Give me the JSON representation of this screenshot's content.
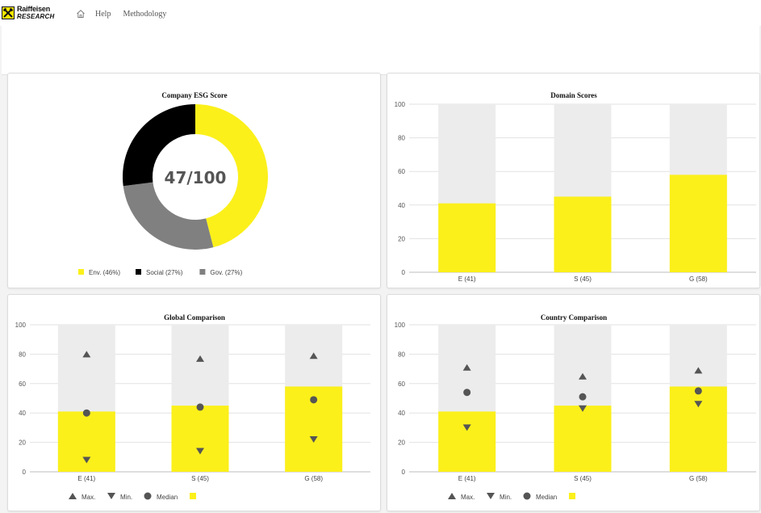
{
  "header": {
    "logo_line1": "Raiffeisen",
    "logo_line2": "RESEARCH",
    "nav": [
      {
        "icon": "home-icon"
      },
      {
        "label": "Help"
      },
      {
        "label": "Methodology"
      }
    ]
  },
  "colors": {
    "yellow": "#fbf01a",
    "black": "#000000",
    "gray": "#808080",
    "track": "#ececec",
    "marker": "#555555"
  },
  "chart_data": [
    {
      "id": "esg",
      "type": "pie",
      "title": "Company ESG Score",
      "center_label": "47/100",
      "slices": [
        {
          "label": "Env. (46%)",
          "value": 46,
          "color": "#fbf01a"
        },
        {
          "label": "Gov. (27%)",
          "value": 27,
          "color": "#808080"
        },
        {
          "label": "Social (27%)",
          "value": 27,
          "color": "#000000"
        }
      ],
      "legend": [
        "Env. (46%)",
        "Social (27%)",
        "Gov. (27%)"
      ],
      "legend_colors": [
        "#fbf01a",
        "#000000",
        "#808080"
      ]
    },
    {
      "id": "domain",
      "type": "bar",
      "title": "Domain Scores",
      "categories": [
        "E (41)",
        "S (45)",
        "G (58)"
      ],
      "values": [
        41,
        45,
        58
      ],
      "max": 100,
      "yticks": [
        0,
        20,
        40,
        60,
        80,
        100
      ],
      "ylim": [
        0,
        100
      ]
    },
    {
      "id": "global",
      "type": "bar",
      "title": "Global Comparison",
      "categories": [
        "E (41)",
        "S (45)",
        "G (58)"
      ],
      "values": [
        41,
        45,
        58
      ],
      "max_values": [
        80,
        77,
        79
      ],
      "min_values": [
        8,
        14,
        22
      ],
      "median_values": [
        40,
        44,
        49
      ],
      "yticks": [
        0,
        20,
        40,
        60,
        80,
        100
      ],
      "ylim": [
        0,
        100
      ],
      "legend": [
        "Max.",
        "Min.",
        "Median"
      ]
    },
    {
      "id": "country",
      "type": "bar",
      "title": "Country Comparison",
      "categories": [
        "E (41)",
        "S (45)",
        "G (58)"
      ],
      "values": [
        41,
        45,
        58
      ],
      "max_values": [
        71,
        65,
        69
      ],
      "min_values": [
        30,
        43,
        46
      ],
      "median_values": [
        54,
        51,
        55
      ],
      "yticks": [
        0,
        20,
        40,
        60,
        80,
        100
      ],
      "ylim": [
        0,
        100
      ],
      "legend": [
        "Max.",
        "Min.",
        "Median"
      ]
    }
  ]
}
